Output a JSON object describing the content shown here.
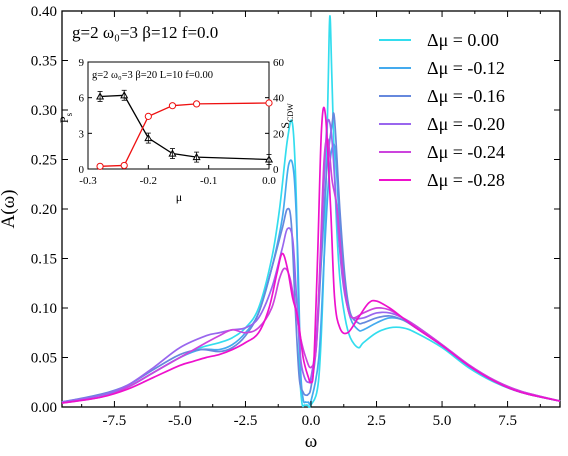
{
  "chart_data": [
    {
      "type": "line",
      "annotation": "g=2 ω₀=3 β=12 f=0.0",
      "xlabel": "ω",
      "ylabel": "A(ω)",
      "xlim": [
        -9.5,
        9.5
      ],
      "ylim": [
        0,
        0.4
      ],
      "xticks": [
        "-7.5",
        "-5.0",
        "-2.5",
        "0.0",
        "2.5",
        "5.0",
        "7.5"
      ],
      "yticks": [
        "0.00",
        "0.05",
        "0.10",
        "0.15",
        "0.20",
        "0.25",
        "0.30",
        "0.35",
        "0.40"
      ],
      "grid": false,
      "legend_position": "top-right",
      "series": [
        {
          "name": "Δμ = 0.00",
          "color": "#33ddee",
          "x": [
            -9.5,
            -8,
            -7,
            -6,
            -5,
            -4.2,
            -3.5,
            -3,
            -2.5,
            -2,
            -1.5,
            -1.2,
            -0.9,
            -0.7,
            -0.55,
            -0.45,
            -0.35,
            -0.25,
            -0.15,
            0,
            0.3,
            0.5,
            0.65,
            0.72,
            0.8,
            0.95,
            1.1,
            1.3,
            1.5,
            1.8,
            2,
            2.5,
            3,
            3.5,
            4,
            5,
            6,
            7,
            8,
            9.5
          ],
          "y": [
            0.005,
            0.012,
            0.02,
            0.035,
            0.05,
            0.06,
            0.065,
            0.07,
            0.08,
            0.1,
            0.15,
            0.2,
            0.27,
            0.285,
            0.2,
            0.05,
            0.005,
            0.002,
            0.002,
            0.002,
            0.03,
            0.15,
            0.32,
            0.395,
            0.33,
            0.2,
            0.13,
            0.09,
            0.07,
            0.06,
            0.065,
            0.075,
            0.08,
            0.08,
            0.075,
            0.06,
            0.04,
            0.025,
            0.015,
            0.006
          ]
        },
        {
          "name": "Δμ = -0.12",
          "color": "#44aaee",
          "x": [
            -9.5,
            -8,
            -7,
            -6,
            -5,
            -4.2,
            -3.5,
            -3,
            -2.5,
            -2,
            -1.5,
            -1.1,
            -0.85,
            -0.65,
            -0.5,
            -0.4,
            -0.3,
            -0.2,
            -0.1,
            0,
            0.3,
            0.5,
            0.7,
            0.85,
            0.95,
            1.1,
            1.3,
            1.5,
            1.8,
            2,
            2.5,
            3,
            3.5,
            4,
            5,
            6,
            7,
            8,
            9.5
          ],
          "y": [
            0.005,
            0.012,
            0.02,
            0.035,
            0.05,
            0.058,
            0.058,
            0.063,
            0.075,
            0.095,
            0.14,
            0.19,
            0.245,
            0.235,
            0.15,
            0.04,
            0.008,
            0.005,
            0.005,
            0.006,
            0.05,
            0.15,
            0.24,
            0.265,
            0.25,
            0.18,
            0.12,
            0.09,
            0.078,
            0.078,
            0.085,
            0.09,
            0.088,
            0.08,
            0.062,
            0.042,
            0.026,
            0.015,
            0.006
          ]
        },
        {
          "name": "Δμ = -0.16",
          "color": "#6688dd",
          "x": [
            -9.5,
            -8,
            -7,
            -6,
            -5,
            -4.2,
            -3.5,
            -3,
            -2.5,
            -2,
            -1.5,
            -1.1,
            -0.9,
            -0.75,
            -0.6,
            -0.45,
            -0.3,
            -0.2,
            -0.1,
            0,
            0.2,
            0.4,
            0.6,
            0.8,
            0.9,
            1.1,
            1.3,
            1.5,
            1.8,
            2,
            2.5,
            3,
            3.5,
            4,
            5,
            6,
            7,
            8,
            9.5
          ],
          "y": [
            0.005,
            0.013,
            0.022,
            0.038,
            0.053,
            0.058,
            0.056,
            0.06,
            0.072,
            0.095,
            0.14,
            0.18,
            0.2,
            0.185,
            0.1,
            0.03,
            0.015,
            0.012,
            0.013,
            0.02,
            0.06,
            0.15,
            0.24,
            0.285,
            0.29,
            0.2,
            0.13,
            0.095,
            0.085,
            0.085,
            0.09,
            0.092,
            0.088,
            0.08,
            0.062,
            0.042,
            0.026,
            0.015,
            0.006
          ]
        },
        {
          "name": "Δμ = -0.20",
          "color": "#9966ee",
          "x": [
            -9.5,
            -8,
            -7,
            -6,
            -5,
            -4,
            -3.5,
            -3,
            -2.5,
            -2,
            -1.5,
            -1.1,
            -0.9,
            -0.7,
            -0.55,
            -0.4,
            -0.25,
            -0.1,
            0,
            0.2,
            0.4,
            0.55,
            0.65,
            0.8,
            1,
            1.2,
            1.4,
            1.6,
            2,
            2.5,
            3,
            3.5,
            4,
            5,
            6,
            7,
            8,
            9.5
          ],
          "y": [
            0.005,
            0.012,
            0.022,
            0.04,
            0.06,
            0.072,
            0.075,
            0.078,
            0.08,
            0.09,
            0.12,
            0.16,
            0.18,
            0.17,
            0.11,
            0.05,
            0.03,
            0.025,
            0.03,
            0.07,
            0.17,
            0.26,
            0.29,
            0.27,
            0.19,
            0.13,
            0.1,
            0.09,
            0.09,
            0.095,
            0.095,
            0.09,
            0.082,
            0.063,
            0.043,
            0.027,
            0.016,
            0.006
          ]
        },
        {
          "name": "Δμ = -0.24",
          "color": "#cc44dd",
          "x": [
            -9.5,
            -8,
            -7,
            -6,
            -5,
            -4,
            -3.5,
            -3,
            -2.5,
            -2,
            -1.5,
            -1.2,
            -1,
            -0.8,
            -0.6,
            -0.4,
            -0.2,
            0,
            0.2,
            0.35,
            0.5,
            0.65,
            0.8,
            1,
            1.2,
            1.4,
            1.6,
            2,
            2.5,
            3,
            3.5,
            4,
            5,
            6,
            7,
            8,
            9.5
          ],
          "y": [
            0.004,
            0.01,
            0.02,
            0.035,
            0.05,
            0.065,
            0.072,
            0.078,
            0.075,
            0.08,
            0.1,
            0.13,
            0.14,
            0.13,
            0.1,
            0.07,
            0.05,
            0.04,
            0.06,
            0.15,
            0.25,
            0.27,
            0.23,
            0.2,
            0.14,
            0.1,
            0.09,
            0.095,
            0.1,
            0.098,
            0.09,
            0.082,
            0.063,
            0.043,
            0.027,
            0.016,
            0.006
          ]
        },
        {
          "name": "Δμ = -0.28",
          "color": "#ee11cc",
          "x": [
            -9.5,
            -8,
            -7,
            -6,
            -5,
            -4.5,
            -4,
            -3.5,
            -3,
            -2.5,
            -2,
            -1.6,
            -1.3,
            -1.1,
            -0.9,
            -0.7,
            -0.5,
            -0.3,
            -0.1,
            0,
            0.1,
            0.25,
            0.4,
            0.55,
            0.75,
            0.9,
            1.1,
            1.4,
            1.8,
            2.2,
            2.5,
            3,
            3.5,
            4,
            5,
            6,
            7,
            8,
            9.5
          ],
          "y": [
            0.004,
            0.01,
            0.018,
            0.03,
            0.042,
            0.046,
            0.05,
            0.053,
            0.058,
            0.065,
            0.075,
            0.1,
            0.135,
            0.155,
            0.14,
            0.11,
            0.09,
            0.05,
            0.03,
            0.025,
            0.04,
            0.15,
            0.28,
            0.295,
            0.2,
            0.11,
            0.08,
            0.075,
            0.09,
            0.105,
            0.107,
            0.1,
            0.09,
            0.08,
            0.062,
            0.042,
            0.026,
            0.015,
            0.006
          ]
        }
      ]
    },
    {
      "type": "line",
      "annotation": "g=2 ω₀=3 β=20 L=10 f=0.00",
      "xlabel": "μ",
      "ylabel_left": "P_s",
      "ylabel_right": "S_CDW",
      "xlim": [
        -0.3,
        0.0
      ],
      "ylim_left": [
        0,
        9
      ],
      "ylim_right": [
        0,
        60
      ],
      "xticks": [
        "-0.3",
        "-0.2",
        "-0.1",
        "0.0"
      ],
      "yticks_left": [
        "0",
        "3",
        "6",
        "9"
      ],
      "yticks_right": [
        "0",
        "20",
        "40",
        "60"
      ],
      "series": [
        {
          "name": "P_s",
          "axis": "left",
          "color": "#000000",
          "marker": "triangle",
          "x": [
            -0.28,
            -0.24,
            -0.2,
            -0.16,
            -0.12,
            0.0
          ],
          "y": [
            6.1,
            6.2,
            2.6,
            1.3,
            1.0,
            0.8
          ]
        },
        {
          "name": "S_CDW",
          "axis": "right",
          "color": "#ee1111",
          "marker": "circle",
          "x": [
            -0.28,
            -0.24,
            -0.2,
            -0.16,
            -0.12,
            0.0
          ],
          "y": [
            1.5,
            2.0,
            29.5,
            35.5,
            36.5,
            37.0
          ]
        }
      ]
    }
  ]
}
